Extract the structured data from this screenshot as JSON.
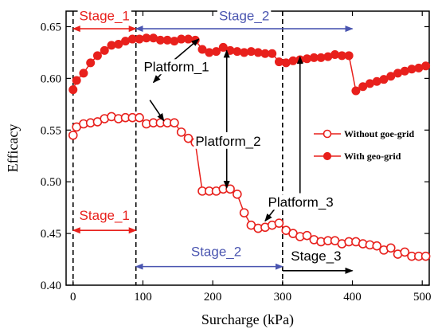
{
  "chart_data": {
    "type": "scatter",
    "title": "",
    "xlabel": "Surcharge (kPa)",
    "ylabel": "Efficacy",
    "xlim": [
      -10,
      510
    ],
    "ylim": [
      0.4,
      0.665
    ],
    "xticks": [
      "0",
      "100",
      "200",
      "300",
      "400",
      "500"
    ],
    "yticks": [
      "0.40",
      "0.45",
      "0.50",
      "0.55",
      "0.60",
      "0.65"
    ],
    "xtick_values": [
      0,
      100,
      200,
      300,
      400,
      500
    ],
    "ytick_values": [
      0.4,
      0.45,
      0.5,
      0.55,
      0.6,
      0.65
    ],
    "legend_position": "right",
    "series": [
      {
        "name": "Without goe-grid",
        "marker": "open-circle",
        "color": "#e8201c",
        "x": [
          0,
          5,
          15,
          25,
          35,
          45,
          55,
          65,
          75,
          85,
          95,
          105,
          115,
          125,
          135,
          145,
          155,
          165,
          175,
          185,
          195,
          205,
          215,
          225,
          235,
          245,
          255,
          265,
          275,
          285,
          295,
          305,
          315,
          325,
          335,
          345,
          355,
          365,
          375,
          385,
          395,
          405,
          415,
          425,
          435,
          445,
          455,
          465,
          475,
          485,
          495,
          505
        ],
        "y": [
          0.545,
          0.553,
          0.556,
          0.557,
          0.558,
          0.561,
          0.563,
          0.561,
          0.562,
          0.562,
          0.562,
          0.556,
          0.557,
          0.557,
          0.557,
          0.557,
          0.548,
          0.542,
          0.538,
          0.491,
          0.491,
          0.491,
          0.493,
          0.493,
          0.488,
          0.47,
          0.458,
          0.455,
          0.456,
          0.458,
          0.46,
          0.453,
          0.45,
          0.447,
          0.448,
          0.444,
          0.442,
          0.443,
          0.443,
          0.44,
          0.442,
          0.442,
          0.44,
          0.439,
          0.438,
          0.434,
          0.436,
          0.43,
          0.432,
          0.428,
          0.428,
          0.428
        ]
      },
      {
        "name": "With geo-grid",
        "marker": "filled-circle",
        "color": "#e8201c",
        "x": [
          0,
          5,
          15,
          25,
          35,
          45,
          55,
          65,
          75,
          85,
          95,
          105,
          115,
          125,
          135,
          145,
          155,
          165,
          175,
          185,
          195,
          205,
          215,
          225,
          235,
          245,
          255,
          265,
          275,
          285,
          295,
          305,
          315,
          325,
          335,
          345,
          355,
          365,
          375,
          385,
          395,
          405,
          415,
          425,
          435,
          445,
          455,
          465,
          475,
          485,
          495,
          505
        ],
        "y": [
          0.589,
          0.598,
          0.605,
          0.615,
          0.622,
          0.627,
          0.632,
          0.633,
          0.636,
          0.638,
          0.638,
          0.639,
          0.639,
          0.637,
          0.637,
          0.636,
          0.638,
          0.638,
          0.637,
          0.628,
          0.625,
          0.626,
          0.63,
          0.627,
          0.626,
          0.625,
          0.626,
          0.625,
          0.624,
          0.624,
          0.616,
          0.615,
          0.617,
          0.618,
          0.619,
          0.62,
          0.62,
          0.621,
          0.623,
          0.622,
          0.622,
          0.588,
          0.592,
          0.595,
          0.597,
          0.599,
          0.602,
          0.605,
          0.607,
          0.609,
          0.61,
          0.612
        ]
      }
    ],
    "stage_lines": [
      {
        "x": 0,
        "style": "dashed"
      },
      {
        "x": 90,
        "style": "dashed"
      },
      {
        "x": 300,
        "style": "dashed"
      }
    ],
    "arrows": [
      {
        "x1": 0,
        "y1": 0.648,
        "x2": 90,
        "y2": 0.648,
        "color": "#e8201c",
        "double": true
      },
      {
        "x1": 90,
        "y1": 0.648,
        "x2": 400,
        "y2": 0.648,
        "color": "#4a55b0",
        "double": true
      },
      {
        "x1": 0,
        "y1": 0.453,
        "x2": 90,
        "y2": 0.453,
        "color": "#e8201c",
        "double": true
      },
      {
        "x1": 90,
        "y1": 0.418,
        "x2": 300,
        "y2": 0.418,
        "color": "#4a55b0",
        "double": true
      },
      {
        "x1": 300,
        "y1": 0.414,
        "x2": 400,
        "y2": 0.414,
        "color": "#000000",
        "double": false
      },
      {
        "x1": 145,
        "y1": 0.618,
        "x2": 115,
        "y2": 0.596,
        "color": "#000000",
        "double": false
      },
      {
        "x1": 145,
        "y1": 0.618,
        "x2": 180,
        "y2": 0.638,
        "color": "#000000",
        "double": false
      },
      {
        "x1": 110,
        "y1": 0.579,
        "x2": 130,
        "y2": 0.559,
        "color": "#000000",
        "double": false
      },
      {
        "x1": 220,
        "y1": 0.548,
        "x2": 220,
        "y2": 0.627,
        "color": "#000000",
        "double": false
      },
      {
        "x1": 220,
        "y1": 0.538,
        "x2": 220,
        "y2": 0.494,
        "color": "#000000",
        "double": false
      },
      {
        "x1": 325,
        "y1": 0.489,
        "x2": 325,
        "y2": 0.621,
        "color": "#000000",
        "double": false
      },
      {
        "x1": 295,
        "y1": 0.479,
        "x2": 275,
        "y2": 0.462,
        "color": "#000000",
        "double": false
      }
    ],
    "annotations": [
      {
        "text": "Stage_1",
        "x": 45,
        "y": 0.656,
        "color": "#e8201c"
      },
      {
        "text": "Stage_2",
        "x": 245,
        "y": 0.656,
        "color": "#4a55b0"
      },
      {
        "text": "Platform_1",
        "x": 148,
        "y": 0.607,
        "color": "#000000"
      },
      {
        "text": "Platform_2",
        "x": 222,
        "y": 0.535,
        "color": "#000000"
      },
      {
        "text": "Platform_3",
        "x": 326,
        "y": 0.476,
        "color": "#000000"
      },
      {
        "text": "Stage_1",
        "x": 45,
        "y": 0.463,
        "color": "#e8201c"
      },
      {
        "text": "Stage_2",
        "x": 205,
        "y": 0.428,
        "color": "#4a55b0"
      },
      {
        "text": "Stage_3",
        "x": 348,
        "y": 0.424,
        "color": "#000000"
      }
    ]
  }
}
